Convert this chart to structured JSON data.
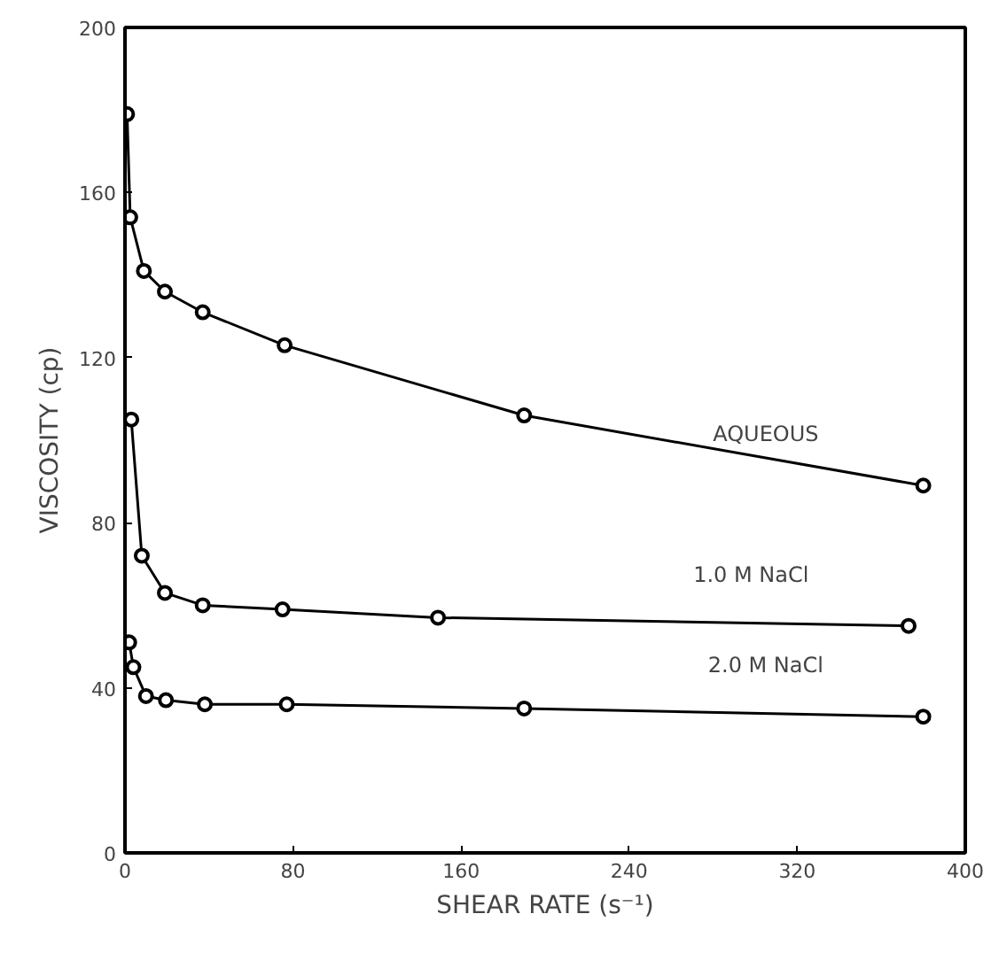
{
  "chart_data": {
    "type": "line",
    "xlabel": "SHEAR RATE (s⁻¹)",
    "ylabel": "VISCOSITY (cp)",
    "xlim": [
      0,
      400
    ],
    "ylim": [
      0,
      200
    ],
    "xticks": [
      0,
      80,
      160,
      240,
      320,
      400
    ],
    "yticks": [
      0,
      40,
      80,
      120,
      160,
      200
    ],
    "grid": false,
    "marker": "circle",
    "line_style": "solid",
    "series": [
      {
        "name": "AQUEOUS",
        "color": "#000000",
        "x": [
          1,
          2.5,
          9,
          19,
          37,
          76,
          190,
          380
        ],
        "values": [
          179,
          154,
          141,
          136,
          131,
          123,
          106,
          89
        ]
      },
      {
        "name": "1.0 M NaCl",
        "color": "#000000",
        "x": [
          3,
          8,
          19,
          37,
          75,
          149,
          373
        ],
        "values": [
          105,
          72,
          63,
          60,
          59,
          57,
          55
        ]
      },
      {
        "name": "2.0 M NaCl",
        "color": "#000000",
        "x": [
          2,
          4,
          10,
          19.5,
          38,
          77,
          190,
          380
        ],
        "values": [
          51,
          45,
          38,
          37,
          36,
          36,
          35,
          33
        ]
      }
    ]
  }
}
